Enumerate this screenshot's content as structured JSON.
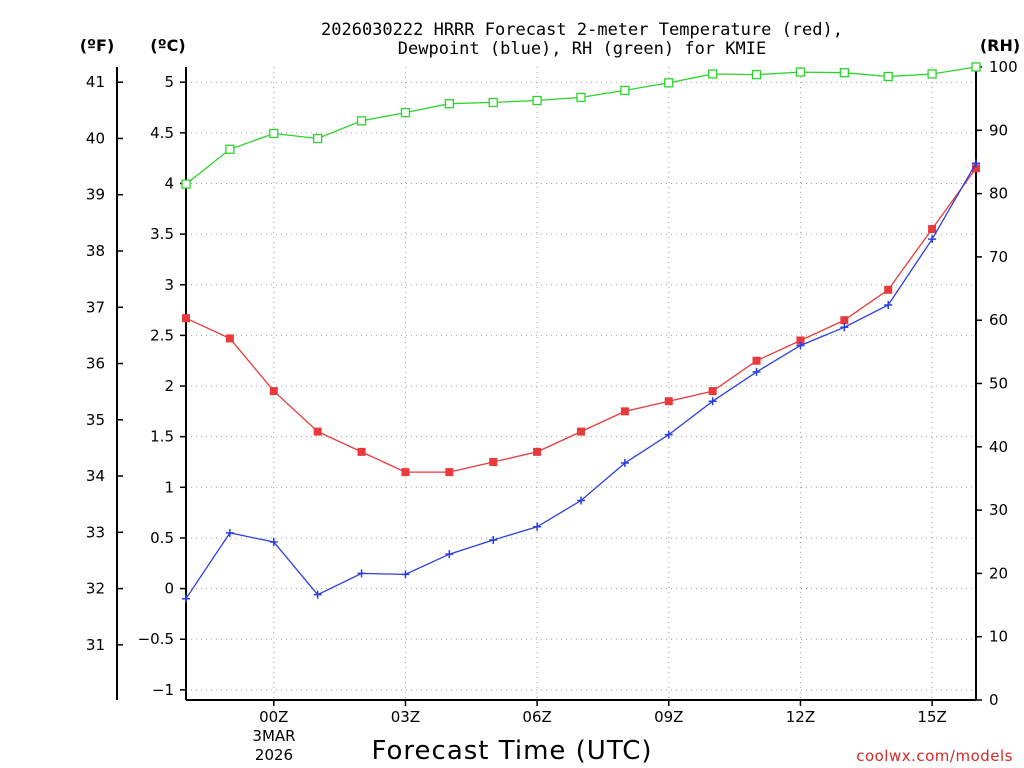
{
  "chart_data": {
    "type": "line",
    "title_line1": "2026030222 HRRR Forecast 2-meter Temperature (red),",
    "title_line2": "Dewpoint (blue), RH (green) for KMIE",
    "xlabel": "Forecast Time (UTC)",
    "left_unit_f": "(ºF)",
    "left_unit_c": "(ºC)",
    "right_unit": "(RH)",
    "watermark": "coolwx.com/models",
    "grid": true,
    "x_hours": [
      -2,
      -1,
      0,
      1,
      2,
      3,
      4,
      5,
      6,
      7,
      8,
      9,
      10,
      11,
      12,
      13,
      14,
      15,
      16
    ],
    "x_range": [
      -2,
      16
    ],
    "x_ticks": [
      {
        "hour": 0,
        "label": "00Z"
      },
      {
        "hour": 3,
        "label": "03Z"
      },
      {
        "hour": 6,
        "label": "06Z"
      },
      {
        "hour": 9,
        "label": "09Z"
      },
      {
        "hour": 12,
        "label": "12Z"
      },
      {
        "hour": 15,
        "label": "15Z"
      }
    ],
    "date_labels": [
      "3MAR",
      "2026"
    ],
    "c_range": [
      -1.1,
      5.15
    ],
    "c_ticks": [
      -1,
      -0.5,
      0,
      0.5,
      1,
      1.5,
      2,
      2.5,
      3,
      3.5,
      4,
      4.5,
      5
    ],
    "f_ticks": [
      31,
      32,
      33,
      34,
      35,
      36,
      37,
      38,
      39,
      40,
      41
    ],
    "rh_range": [
      0,
      100
    ],
    "rh_ticks": [
      0,
      10,
      20,
      30,
      40,
      50,
      60,
      70,
      80,
      90,
      100
    ],
    "series": [
      {
        "name": "Temperature",
        "color": "#e8393b",
        "axis": "c",
        "marker": "filled-square",
        "values": [
          2.67,
          2.47,
          1.95,
          1.55,
          1.35,
          1.15,
          1.15,
          1.25,
          1.35,
          1.55,
          1.75,
          1.85,
          1.95,
          2.25,
          2.45,
          2.65,
          2.95,
          3.55,
          4.15
        ]
      },
      {
        "name": "Dewpoint",
        "color": "#2a3ee0",
        "axis": "c",
        "marker": "plus",
        "values": [
          -0.1,
          0.55,
          0.46,
          -0.06,
          0.15,
          0.14,
          0.34,
          0.48,
          0.61,
          0.87,
          1.24,
          1.52,
          1.85,
          2.14,
          2.4,
          2.58,
          2.8,
          3.45,
          4.2
        ]
      },
      {
        "name": "RH",
        "color": "#2bd42b",
        "axis": "rh",
        "marker": "open-square",
        "values": [
          81.5,
          87,
          89.5,
          88.7,
          91.5,
          92.8,
          94.2,
          94.4,
          94.7,
          95.2,
          96.3,
          97.5,
          98.9,
          98.8,
          99.2,
          99.1,
          98.5,
          98.9,
          100
        ]
      }
    ]
  }
}
